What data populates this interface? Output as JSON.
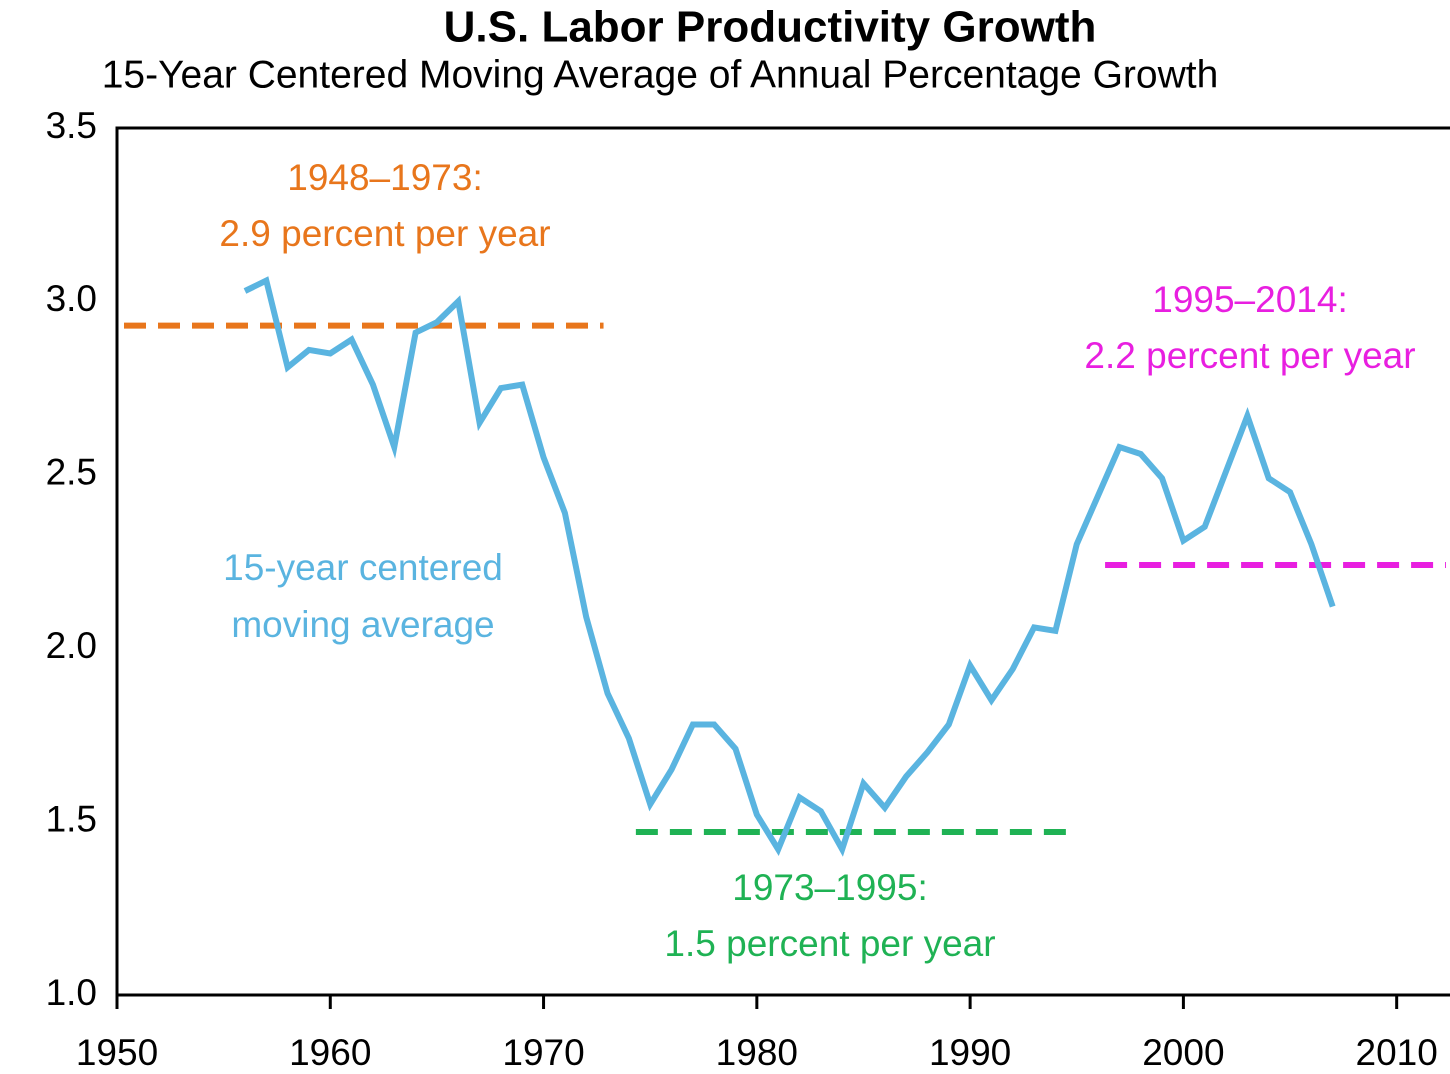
{
  "chart_data": {
    "type": "line",
    "title": "U.S. Labor Productivity Growth",
    "subtitle": "15-Year Centered Moving Average of Annual Percentage Growth",
    "xlim": [
      1950,
      2012.5
    ],
    "xticks": [
      1950,
      1960,
      1970,
      1980,
      1990,
      2000,
      2010
    ],
    "ylim": [
      1,
      3.5
    ],
    "yticks": [
      {
        "value": 1,
        "label": "1.0"
      },
      {
        "value": 1.5,
        "label": "1.5"
      },
      {
        "value": 2,
        "label": "2.0"
      },
      {
        "value": 2.5,
        "label": "2.5"
      },
      {
        "value": 3,
        "label": "3.0"
      },
      {
        "value": 3.5,
        "label": "3.5"
      }
    ],
    "x": [
      1956,
      1957,
      1958,
      1959,
      1960,
      1961,
      1962,
      1963,
      1964,
      1965,
      1966,
      1967,
      1968,
      1969,
      1970,
      1971,
      1972,
      1973,
      1974,
      1975,
      1976,
      1977,
      1978,
      1979,
      1980,
      1981,
      1982,
      1983,
      1984,
      1985,
      1986,
      1987,
      1988,
      1989,
      1990,
      1991,
      1992,
      1993,
      1994,
      1995,
      1996,
      1997,
      1998,
      1999,
      2000,
      2001,
      2002,
      2003,
      2004,
      2005,
      2006,
      2007
    ],
    "series": [
      {
        "label_lines": [
          "15-year centered",
          "moving average"
        ],
        "color": "#5ab4e0",
        "values": [
          3.03,
          3.06,
          2.81,
          2.86,
          2.85,
          2.89,
          2.76,
          2.58,
          2.91,
          2.94,
          3.0,
          2.65,
          2.75,
          2.76,
          2.55,
          2.39,
          2.09,
          1.87,
          1.74,
          1.55,
          1.65,
          1.78,
          1.78,
          1.71,
          1.52,
          1.42,
          1.57,
          1.53,
          1.42,
          1.61,
          1.54,
          1.63,
          1.7,
          1.78,
          1.95,
          1.85,
          1.94,
          2.06,
          2.05,
          2.3,
          2.44,
          2.58,
          2.56,
          2.49,
          2.31,
          2.35,
          2.51,
          2.67,
          2.49,
          2.45,
          2.3,
          2.12
        ]
      }
    ],
    "reference_lines": [
      {
        "label_lines": [
          "1948–1973:",
          "2.9 percent per year"
        ],
        "x_start": 1950,
        "x_end": 1973,
        "value": 2.93,
        "color": "#e8761c"
      },
      {
        "label_lines": [
          "1973–1995:",
          "1.5 percent per year"
        ],
        "x_start": 1974,
        "x_end": 1995,
        "value": 1.47,
        "color": "#1fb254"
      },
      {
        "label_lines": [
          "1995–2014:",
          "2.2 percent per year"
        ],
        "x_start": 1996,
        "x_end": 2012.5,
        "value": 2.24,
        "color": "#e81fe0"
      }
    ]
  }
}
